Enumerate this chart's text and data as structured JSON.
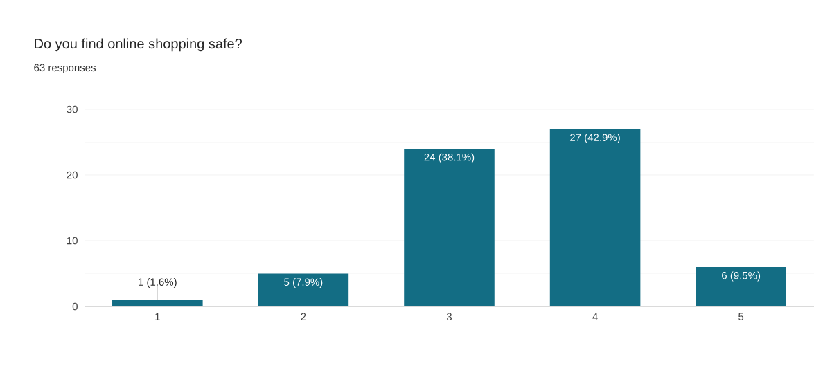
{
  "chart_data": {
    "type": "bar",
    "title": "Do you find online shopping safe?",
    "subtitle": "63 responses",
    "categories": [
      "1",
      "2",
      "3",
      "4",
      "5"
    ],
    "values": [
      1,
      5,
      24,
      27,
      6
    ],
    "value_labels": [
      "1 (1.6%)",
      "5 (7.9%)",
      "24 (38.1%)",
      "27 (42.9%)",
      "6 (9.5%)"
    ],
    "color": "#136d84",
    "ylim": [
      0,
      30
    ],
    "yticks": [
      0,
      10,
      20,
      30
    ],
    "grid": "y"
  }
}
